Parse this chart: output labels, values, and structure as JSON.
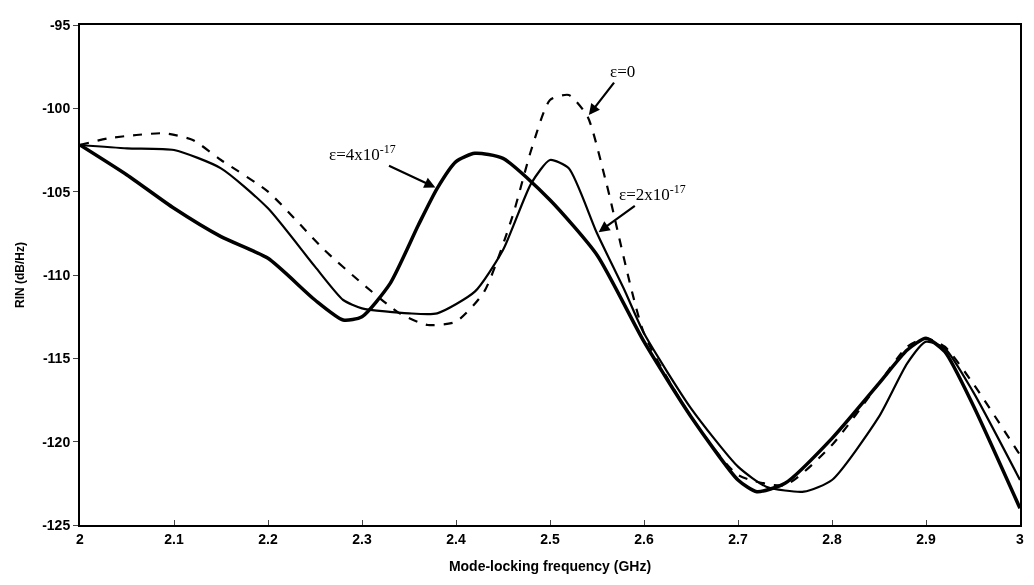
{
  "chart_data": {
    "type": "line",
    "xlabel": "Mode-locking frequency (GHz)",
    "ylabel": "RIN (dB/Hz)",
    "xlim": [
      2,
      3
    ],
    "ylim": [
      -125,
      -95
    ],
    "xticks": [
      2,
      2.1,
      2.2,
      2.3,
      2.4,
      2.5,
      2.6,
      2.7,
      2.8,
      2.9,
      3
    ],
    "yticks": [
      -125,
      -120,
      -115,
      -110,
      -105,
      -100,
      -95
    ],
    "marker": "none",
    "series": [
      {
        "color": "#000000",
        "line_style": "dashed",
        "x": [
          2,
          2.03,
          2.06,
          2.09,
          2.12,
          2.15,
          2.2,
          2.26,
          2.3,
          2.34,
          2.37,
          2.4,
          2.43,
          2.46,
          2.48,
          2.5,
          2.52,
          2.54,
          2.56,
          2.6,
          2.65,
          2.7,
          2.75,
          2.8,
          2.85,
          2.88,
          2.9,
          2.92,
          2.95,
          3
        ],
        "values": [
          -102.2,
          -101.8,
          -101.6,
          -101.5,
          -101.9,
          -103.1,
          -105,
          -108.5,
          -110.5,
          -112.3,
          -113,
          -112.8,
          -111,
          -106.5,
          -102.5,
          -99.5,
          -99.2,
          -100.5,
          -104.5,
          -113.5,
          -118.5,
          -122,
          -122.6,
          -120.2,
          -116.5,
          -114.3,
          -113.8,
          -114.3,
          -116.5,
          -120.8
        ]
      },
      {
        "color": "#000000",
        "line_style": "solid",
        "x": [
          2,
          2.05,
          2.1,
          2.15,
          2.2,
          2.25,
          2.28,
          2.3,
          2.35,
          2.38,
          2.42,
          2.45,
          2.48,
          2.5,
          2.52,
          2.55,
          2.58,
          2.6,
          2.65,
          2.7,
          2.73,
          2.77,
          2.8,
          2.85,
          2.88,
          2.9,
          2.92,
          2.95,
          3
        ],
        "values": [
          -102.2,
          -102.4,
          -102.5,
          -103.6,
          -106,
          -109.5,
          -111.5,
          -112,
          -112.3,
          -112.3,
          -111,
          -108.5,
          -104.5,
          -103.1,
          -103.6,
          -107.5,
          -111,
          -113.5,
          -118,
          -121.5,
          -122.7,
          -123,
          -122.3,
          -118.5,
          -115.3,
          -114,
          -114.4,
          -117,
          -122.3
        ]
      },
      {
        "color": "#000000",
        "line_style": "solid",
        "x": [
          2,
          2.05,
          2.1,
          2.15,
          2.2,
          2.25,
          2.28,
          2.3,
          2.33,
          2.36,
          2.38,
          2.4,
          2.42,
          2.45,
          2.5,
          2.55,
          2.6,
          2.65,
          2.7,
          2.72,
          2.75,
          2.8,
          2.85,
          2.88,
          2.9,
          2.92,
          2.95,
          3
        ],
        "values": [
          -102.2,
          -104,
          -106,
          -107.7,
          -109,
          -111.5,
          -112.7,
          -112.5,
          -110.5,
          -107,
          -104.8,
          -103.2,
          -102.7,
          -103,
          -105.5,
          -108.8,
          -114,
          -118.5,
          -122.3,
          -123,
          -122.5,
          -119.8,
          -116.5,
          -114.5,
          -113.8,
          -114.6,
          -117.8,
          -124
        ]
      }
    ],
    "annotations": [
      {
        "text": "ε=0",
        "x": 2.54,
        "y": -100.5
      },
      {
        "text": "ε=4x10$^{-17}$",
        "x": 2.38,
        "y": -104.8
      },
      {
        "text": "ε=2x10$^{-17}$",
        "x": 2.55,
        "y": -107.5
      }
    ]
  }
}
